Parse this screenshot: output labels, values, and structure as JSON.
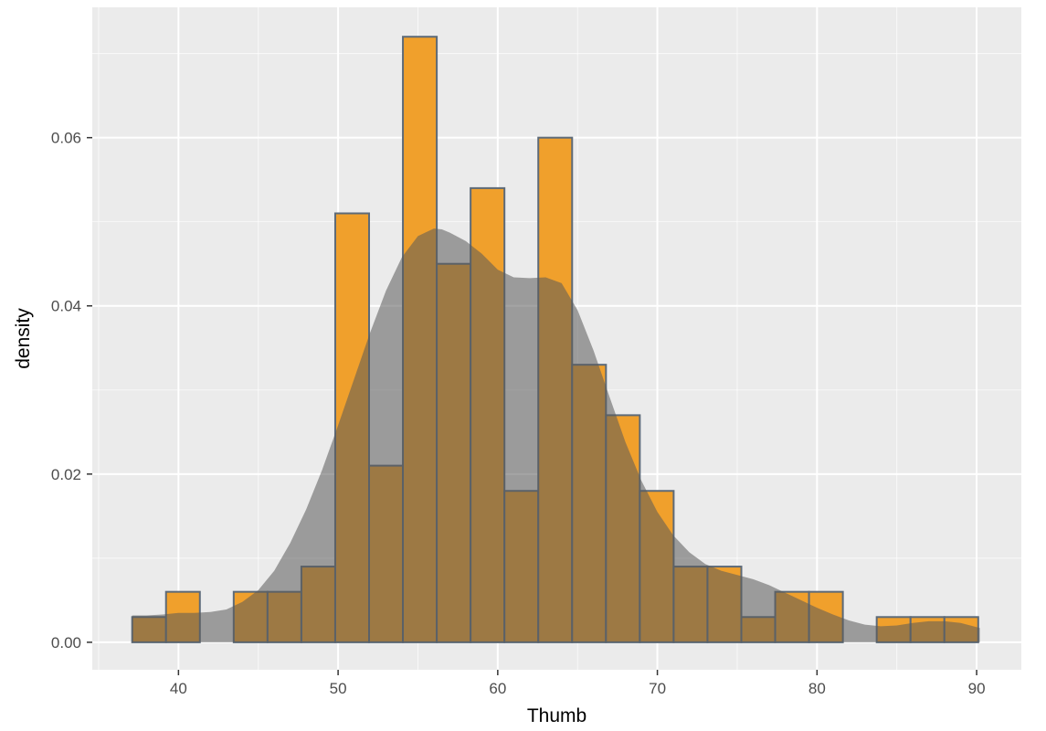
{
  "chart_data": {
    "type": "bar",
    "xlabel": "Thumb",
    "ylabel": "density",
    "xlim": [
      34.6,
      92.8
    ],
    "ylim": [
      -0.00327,
      0.0755
    ],
    "x_ticks": [
      40,
      50,
      60,
      70,
      80,
      90
    ],
    "x_tick_labels": [
      "40",
      "50",
      "60",
      "70",
      "80",
      "90"
    ],
    "y_ticks": [
      0.0,
      0.02,
      0.04,
      0.06
    ],
    "y_tick_labels": [
      "0.00",
      "0.02",
      "0.04",
      "0.06"
    ],
    "grid": true,
    "histogram": {
      "bin_width": 2.12,
      "first_bin_left": 37.1,
      "values": [
        0.003,
        0.006,
        0.0,
        0.006,
        0.006,
        0.009,
        0.051,
        0.021,
        0.072,
        0.045,
        0.054,
        0.018,
        0.06,
        0.033,
        0.027,
        0.018,
        0.009,
        0.009,
        0.003,
        0.006,
        0.006,
        0.0,
        0.003,
        0.003,
        0.003
      ],
      "fill": "#f0a02c",
      "outline": "#5d6a78"
    },
    "density": {
      "x": [
        37.1,
        38,
        39,
        40,
        41,
        42,
        43,
        44,
        45,
        46,
        47,
        48,
        49,
        50,
        51,
        52,
        53,
        54,
        55,
        56,
        56.5,
        57,
        58,
        59,
        60,
        61,
        62,
        63,
        64,
        65,
        66,
        67,
        68,
        69,
        70,
        71,
        72,
        73,
        74,
        75,
        76,
        77,
        78,
        79,
        80,
        81,
        82,
        83,
        84,
        85,
        86,
        87,
        88,
        89,
        90.2
      ],
      "y": [
        0.0032,
        0.0032,
        0.0033,
        0.0035,
        0.0035,
        0.0036,
        0.0039,
        0.0048,
        0.0062,
        0.0085,
        0.0118,
        0.0158,
        0.0205,
        0.0258,
        0.0313,
        0.0368,
        0.0418,
        0.0458,
        0.0483,
        0.0492,
        0.0491,
        0.0487,
        0.0477,
        0.0462,
        0.0443,
        0.0434,
        0.0433,
        0.0434,
        0.0427,
        0.0395,
        0.0347,
        0.0292,
        0.0238,
        0.0192,
        0.0155,
        0.0127,
        0.0107,
        0.0093,
        0.0085,
        0.008,
        0.0075,
        0.0068,
        0.0059,
        0.005,
        0.0041,
        0.0033,
        0.0026,
        0.0021,
        0.0019,
        0.002,
        0.0023,
        0.0025,
        0.0025,
        0.0023,
        0.0017
      ],
      "fill": "#5a5a5a",
      "opacity": 0.55
    }
  },
  "colors": {
    "panel_background": "#ebebeb",
    "grid_major": "#ffffff",
    "axis_text": "#4d4d4d",
    "title_text": "#000000"
  }
}
